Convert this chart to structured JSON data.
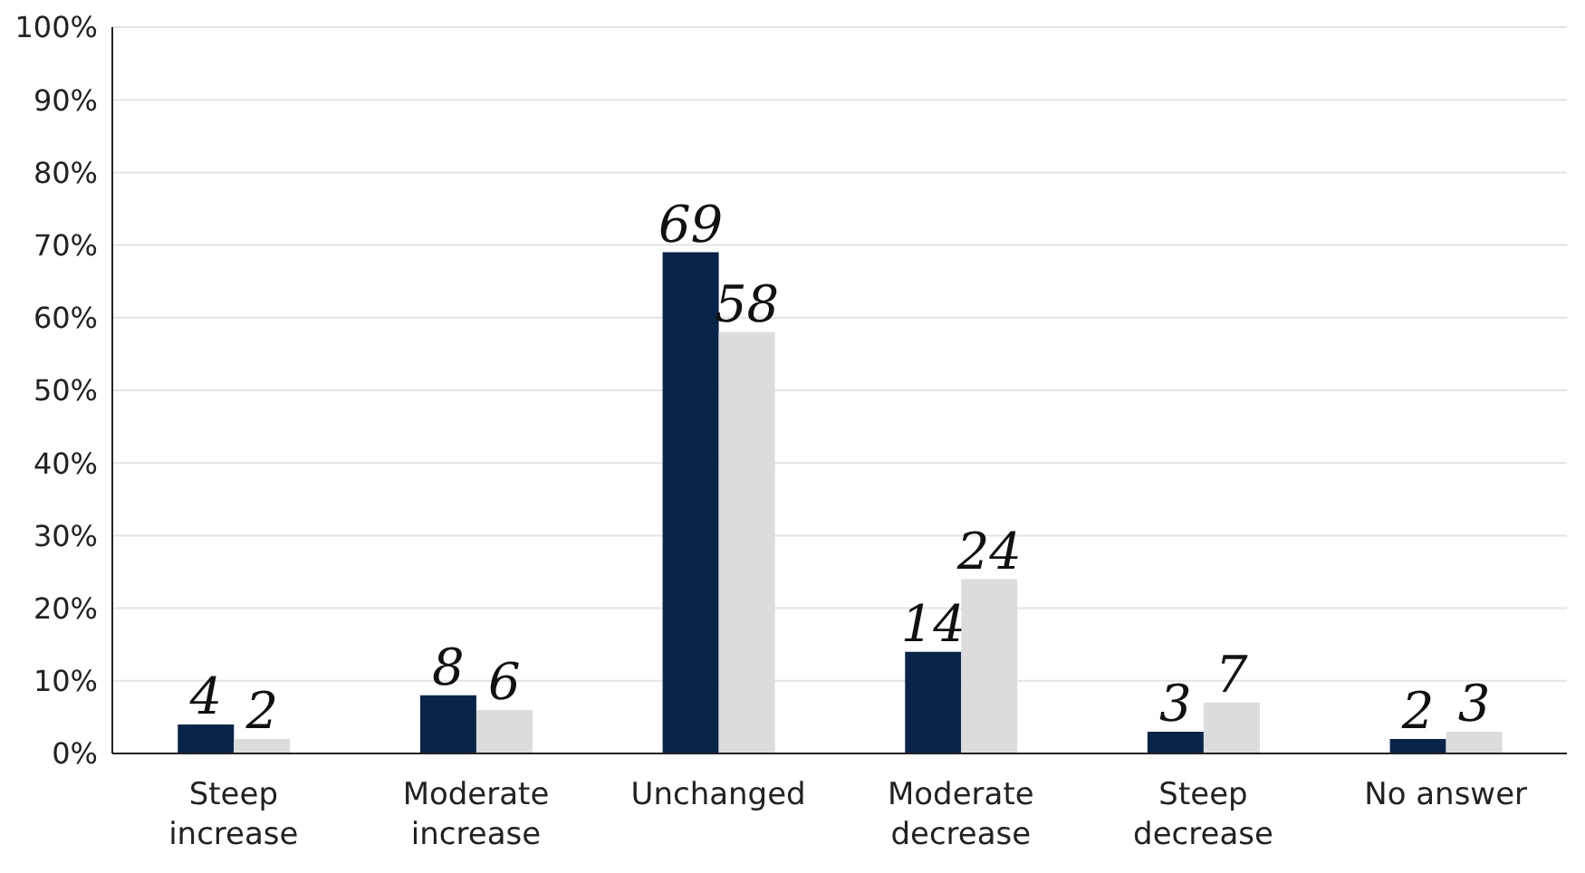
{
  "chart_data": {
    "type": "bar",
    "categories": [
      "Steep increase",
      "Moderate increase",
      "Unchanged",
      "Moderate decrease",
      "Steep decrease",
      "No answer"
    ],
    "series": [
      {
        "color": "#0a2449",
        "values": [
          4,
          8,
          69,
          14,
          3,
          2
        ]
      },
      {
        "color": "#dcdcdc",
        "values": [
          2,
          6,
          58,
          24,
          7,
          3
        ]
      }
    ],
    "ylim": [
      0,
      100
    ],
    "yticks": [
      {
        "value": 0,
        "label": "0%"
      },
      {
        "value": 10,
        "label": "10%"
      },
      {
        "value": 20,
        "label": "20%"
      },
      {
        "value": 30,
        "label": "30%"
      },
      {
        "value": 40,
        "label": "40%"
      },
      {
        "value": 50,
        "label": "50%"
      },
      {
        "value": 60,
        "label": "60%"
      },
      {
        "value": 70,
        "label": "70%"
      },
      {
        "value": 80,
        "label": "80%"
      },
      {
        "value": 90,
        "label": "90%"
      },
      {
        "value": 100,
        "label": "100%"
      }
    ],
    "grid": "y",
    "legend": false,
    "data_labels": true
  }
}
